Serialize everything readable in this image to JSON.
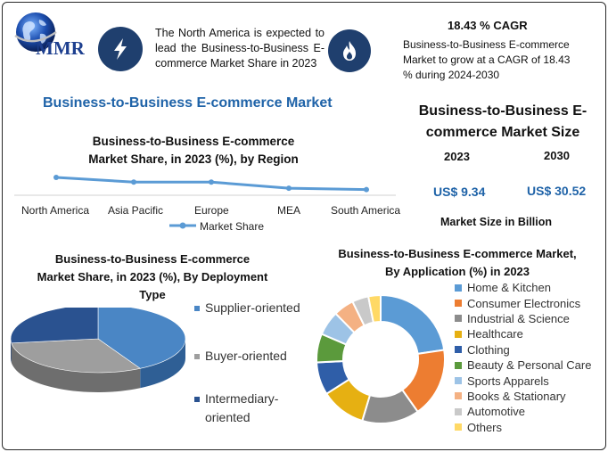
{
  "logo": {
    "text": "MMR",
    "icon": "globe-icon"
  },
  "header": {
    "region_note": "The North America is expected to lead the Business-to-Business E-commerce Market Share in 2023",
    "region_icon": "lightning-icon",
    "cagr_icon": "flame-icon",
    "cagr_title": "18.43 % CAGR",
    "cagr_note": "Business-to-Business  E-commerce Market to grow at a CAGR of 18.43 % during 2024-2030"
  },
  "market_title": "Business-to-Business E-commerce Market",
  "market_size": {
    "title": "Business-to-Business E-commerce Market Size",
    "year_start": "2023",
    "year_end": "2030",
    "value_start": "US$ 9.34",
    "value_end": "US$ 30.52",
    "unit_note": "Market Size in Billion"
  },
  "colors": {
    "line": "#5b9bd5",
    "dark_blue": "#1f3f6e",
    "accent_blue": "#1f63a8"
  },
  "chart_data": [
    {
      "type": "line",
      "title": "Business-to-Business E-commerce Market Share, in 2023 (%), by Region",
      "categories": [
        "North America",
        "Asia Pacific",
        "Europe",
        "MEA",
        "South America"
      ],
      "series": [
        {
          "name": "Market Share",
          "values": [
            38,
            28,
            28,
            15,
            12
          ],
          "color": "#5b9bd5"
        }
      ],
      "ylim": [
        0,
        100
      ],
      "legend": "bottom",
      "grid": false
    },
    {
      "type": "pie",
      "title": "Business-to-Business E-commerce Market Share, in 2023 (%), By Deployment Type",
      "categories": [
        "Supplier-oriented",
        "Buyer-oriented",
        "Intermediary-oriented"
      ],
      "values": [
        42,
        31,
        27
      ],
      "colors": [
        "#4a86c5",
        "#9e9e9e",
        "#2a5290"
      ],
      "legend": "right"
    },
    {
      "type": "pie",
      "title": "Business-to-Business E-commerce Market, By Application (%) in 2023",
      "categories": [
        "Home & Kitchen",
        "Consumer Electronics",
        "Industrial & Science",
        "Healthcare",
        "Clothing",
        "Beauty & Personal Care",
        "Sports Apparels",
        "Books & Stationary",
        "Automotive",
        "Others"
      ],
      "values": [
        22,
        17,
        14,
        11,
        8,
        7,
        6,
        5,
        4,
        3
      ],
      "colors": [
        "#5b9bd5",
        "#ed7d31",
        "#8c8c8c",
        "#e6b012",
        "#2f5ea8",
        "#5b9a3c",
        "#9dc3e6",
        "#f4b183",
        "#c9c9c9",
        "#ffd966"
      ],
      "legend": "right"
    }
  ]
}
